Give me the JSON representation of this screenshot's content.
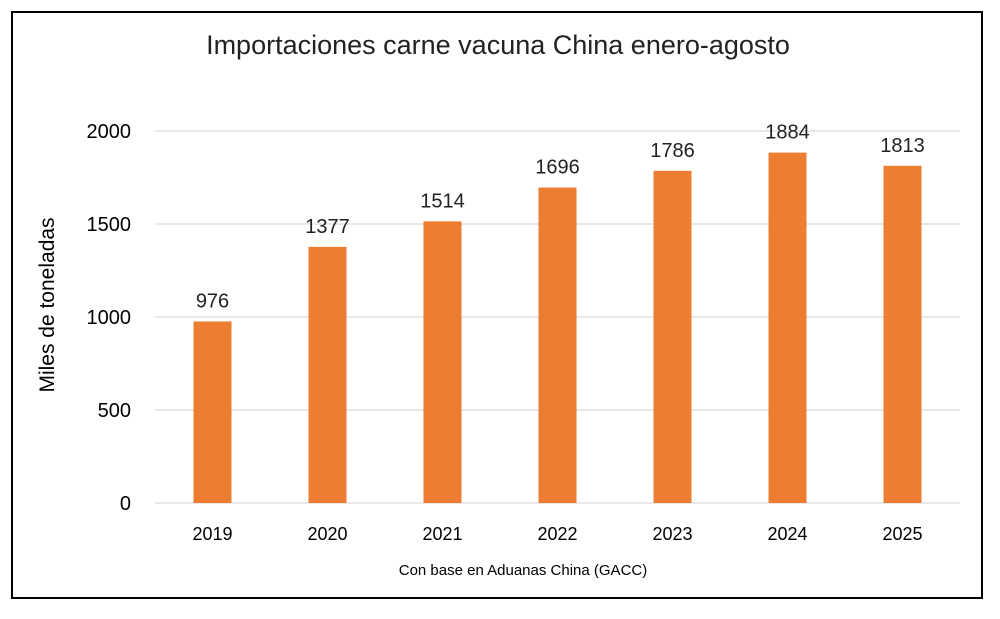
{
  "chart_data": {
    "type": "bar",
    "title": "Importaciones carne vacuna China enero-agosto",
    "xlabel": "",
    "ylabel": "Miles de toneladas",
    "categories": [
      "2019",
      "2020",
      "2021",
      "2022",
      "2023",
      "2024",
      "2025"
    ],
    "values": [
      976,
      1377,
      1514,
      1696,
      1786,
      1884,
      1813
    ],
    "data_labels": [
      "976",
      "1377",
      "1514",
      "1696",
      "1786",
      "1884",
      "1813"
    ],
    "ylim": [
      0,
      2000
    ],
    "yticks": [
      "0",
      "500",
      "1000",
      "1500",
      "2000"
    ],
    "grid": true,
    "legend": "none",
    "source": "Con base en Aduanas China (GACC)",
    "bar_color": "#ED7D31",
    "grid_color": "#D9D9D9"
  }
}
